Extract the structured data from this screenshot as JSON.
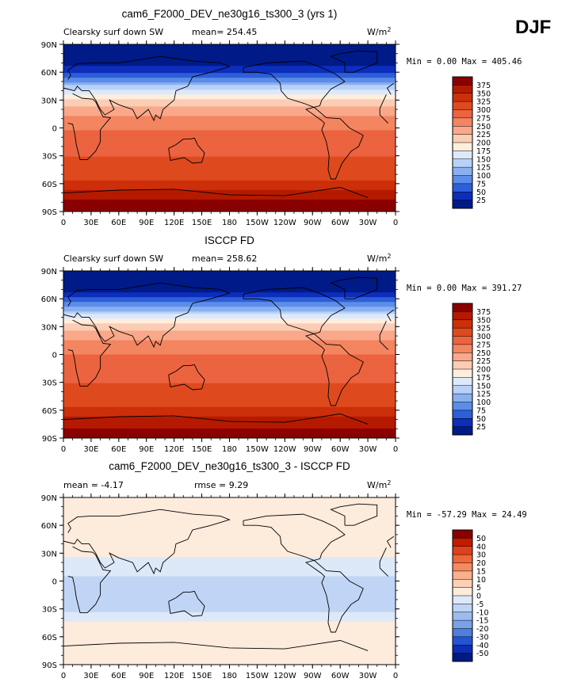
{
  "season": "DJF",
  "chart_data": [
    {
      "type": "heatmap",
      "title": "cam6_F2000_DEV_ne30g16_ts300_3 (yrs 1)",
      "left_label": "Clearsky surf down SW",
      "stats_label": "mean= 254.45",
      "units": "W/m",
      "units_exp": "2",
      "minmax": "Min =   0.00 Max = 405.46",
      "x_ticks": [
        "0",
        "30E",
        "60E",
        "90E",
        "120E",
        "150E",
        "180",
        "150W",
        "120W",
        "90W",
        "60W",
        "30W",
        "0"
      ],
      "y_ticks": [
        "90N",
        "60N",
        "30N",
        "0",
        "30S",
        "60S",
        "90S"
      ],
      "colorbar": {
        "levels": [
          "375",
          "350",
          "325",
          "300",
          "275",
          "250",
          "225",
          "200",
          "175",
          "150",
          "125",
          "100",
          "75",
          "50",
          "25"
        ],
        "colors": [
          "#8b0000",
          "#b51a00",
          "#cc2f09",
          "#de4a1e",
          "#ec6340",
          "#f48561",
          "#f9a88b",
          "#fbcdb4",
          "#ffeedd",
          "#dce9fb",
          "#b9d1f7",
          "#8ab0f0",
          "#5c8de8",
          "#2d5fd9",
          "#0d2ebc",
          "#001a88"
        ]
      },
      "field_profile_lat": [
        -90,
        -80,
        -70,
        -60,
        -50,
        -40,
        -30,
        -20,
        -10,
        0,
        10,
        20,
        30,
        40,
        50,
        60,
        70,
        80,
        90
      ],
      "field_profile_value": [
        395,
        385,
        360,
        330,
        315,
        305,
        300,
        295,
        285,
        270,
        255,
        235,
        205,
        160,
        100,
        50,
        15,
        5,
        0
      ]
    },
    {
      "type": "heatmap",
      "title": "ISCCP FD",
      "left_label": "Clearsky surf down SW",
      "stats_label": "mean= 258.62",
      "units": "W/m",
      "units_exp": "2",
      "minmax": "Min =   0.00 Max = 391.27",
      "x_ticks": [
        "0",
        "30E",
        "60E",
        "90E",
        "120E",
        "150E",
        "180",
        "150W",
        "120W",
        "90W",
        "60W",
        "30W",
        "0"
      ],
      "y_ticks": [
        "90N",
        "60N",
        "30N",
        "0",
        "30S",
        "60S",
        "90S"
      ],
      "colorbar": {
        "levels": [
          "375",
          "350",
          "325",
          "300",
          "275",
          "250",
          "225",
          "200",
          "175",
          "150",
          "125",
          "100",
          "75",
          "50",
          "25"
        ],
        "colors": [
          "#8b0000",
          "#b51a00",
          "#cc2f09",
          "#de4a1e",
          "#ec6340",
          "#f48561",
          "#f9a88b",
          "#fbcdb4",
          "#ffeedd",
          "#dce9fb",
          "#b9d1f7",
          "#8ab0f0",
          "#5c8de8",
          "#2d5fd9",
          "#0d2ebc",
          "#001a88"
        ]
      },
      "field_profile_lat": [
        -90,
        -80,
        -70,
        -60,
        -50,
        -40,
        -30,
        -20,
        -10,
        0,
        10,
        20,
        30,
        40,
        50,
        60,
        70,
        80,
        90
      ],
      "field_profile_value": [
        385,
        375,
        355,
        330,
        315,
        305,
        300,
        295,
        285,
        275,
        260,
        240,
        210,
        165,
        105,
        55,
        18,
        5,
        0
      ]
    },
    {
      "type": "heatmap",
      "title": "cam6_F2000_DEV_ne30g16_ts300_3 - ISCCP FD",
      "left_label": "mean =  -4.17",
      "stats_label": "rmse =   9.29",
      "units": "W/m",
      "units_exp": "2",
      "minmax": "Min = -57.29 Max =  24.49",
      "x_ticks": [
        "0",
        "30E",
        "60E",
        "90E",
        "120E",
        "150E",
        "180",
        "150W",
        "120W",
        "90W",
        "60W",
        "30W",
        "0"
      ],
      "y_ticks": [
        "90N",
        "60N",
        "30N",
        "0",
        "30S",
        "60S",
        "90S"
      ],
      "colorbar": {
        "levels": [
          "50",
          "40",
          "30",
          "20",
          "15",
          "10",
          "5",
          "0",
          "-5",
          "-10",
          "-15",
          "-20",
          "-30",
          "-40",
          "-50"
        ],
        "colors": [
          "#8b0000",
          "#c41a00",
          "#e0401a",
          "#f0653a",
          "#f7895f",
          "#fab08c",
          "#fcd0b5",
          "#fdebdc",
          "#dde8f8",
          "#c0d5f5",
          "#9cbcef",
          "#7aa1e8",
          "#4d7ee0",
          "#2553d3",
          "#0a2fb5",
          "#001a80"
        ]
      },
      "field_profile_lat": [
        -90,
        -80,
        -70,
        -60,
        -50,
        -40,
        -30,
        -20,
        -10,
        0,
        10,
        20,
        30,
        40,
        50,
        60,
        70,
        80,
        90
      ],
      "field_profile_value": [
        4,
        3,
        2,
        3,
        2,
        -2,
        -6,
        -8,
        -7,
        -6,
        -4,
        -2,
        1,
        2,
        2,
        3,
        2,
        1,
        0
      ]
    }
  ]
}
